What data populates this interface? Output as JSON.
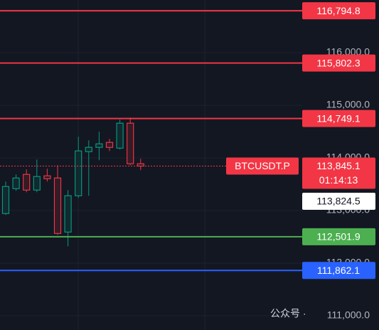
{
  "chart_data": {
    "type": "candlestick",
    "open": [
      112943,
      113416,
      113686,
      113389,
      113659,
      113618,
      112591,
      113281,
      114119,
      114200,
      114294,
      114186,
      114659,
      113889
    ],
    "high": [
      113551,
      113686,
      113781,
      113970,
      113794,
      113862,
      113389,
      114402,
      114335,
      114497,
      114362,
      114727,
      114767,
      113983
    ],
    "low": [
      112916,
      113375,
      113348,
      113348,
      113551,
      112538,
      112321,
      113240,
      113281,
      113956,
      114132,
      114159,
      113862,
      113767
    ],
    "close": [
      113456,
      113618,
      113389,
      113646,
      113605,
      112565,
      113281,
      114132,
      114200,
      114267,
      114200,
      114659,
      113889,
      113845.1
    ],
    "up_color": "#089981",
    "down_color": "#f23645",
    "ylim": [
      110730,
      117000
    ],
    "yticks": [
      {
        "value": 111000,
        "label": "111,000.0"
      },
      {
        "value": 112000,
        "label": "112,000.0"
      },
      {
        "value": 113000,
        "label": "113,000.0"
      },
      {
        "value": 114000,
        "label": "114,000.0"
      },
      {
        "value": 115000,
        "label": "115,000.0"
      },
      {
        "value": 116000,
        "label": "116,000.0"
      }
    ],
    "grid": true,
    "levels": [
      {
        "value": 116794.8,
        "label": "116,794.8",
        "color": "#f23645"
      },
      {
        "value": 115802.3,
        "label": "115,802.3",
        "color": "#f23645"
      },
      {
        "value": 114749.1,
        "label": "114,749.1",
        "color": "#f23645"
      },
      {
        "value": 112501.9,
        "label": "112,501.9",
        "color": "#4caf50"
      },
      {
        "value": 111862.1,
        "label": "111,862.1",
        "color": "#2962ff"
      }
    ],
    "symbol": "BTCUSDT.P",
    "last_price": {
      "value": 113845.1,
      "label": "113,845.1"
    },
    "countdown": "01:14:13",
    "mark_price": {
      "value": 113824.5,
      "label": "113,824.5"
    },
    "watermark": "公众号 ·"
  }
}
